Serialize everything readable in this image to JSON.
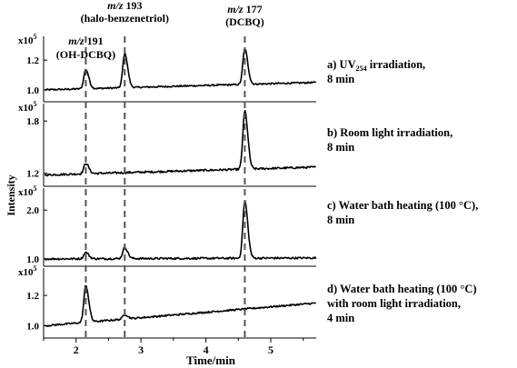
{
  "chart_data": {
    "type": "line",
    "xlabel": "Time/min",
    "ylabel": "Intensity",
    "xlim": [
      1.5,
      5.7
    ],
    "x_ticks": [
      "2",
      "3",
      "4",
      "5"
    ],
    "x_tick_values": [
      2,
      3,
      4,
      5
    ],
    "markers": [
      {
        "x": 2.15,
        "label_prefix": "m/z",
        "label_value": "191",
        "label_compound": "(OH-DCBQ)"
      },
      {
        "x": 2.75,
        "label_prefix": "m/z",
        "label_value": "193",
        "label_compound": "(halo-benzenetriol)"
      },
      {
        "x": 4.6,
        "label_prefix": "m/z",
        "label_value": "177",
        "label_compound": "(DCBQ)"
      }
    ],
    "panels": [
      {
        "scale_label": "x10",
        "scale_exp": "5",
        "ylim": [
          0.92,
          1.36
        ],
        "yticks": [
          1.0,
          1.2
        ],
        "ytick_labels": [
          "1.0",
          "1.2"
        ],
        "annotation_lines": [
          "a) UV254 irradiation,",
          "8 min"
        ],
        "baseline_start": 1.0,
        "baseline_end": 1.05,
        "peaks": [
          {
            "x": 2.15,
            "height": 1.13
          },
          {
            "x": 2.75,
            "height": 1.23
          },
          {
            "x": 4.6,
            "height": 1.24
          }
        ]
      },
      {
        "scale_label": "x10",
        "scale_exp": "5",
        "ylim": [
          1.05,
          2.0
        ],
        "yticks": [
          1.2,
          1.8
        ],
        "ytick_labels": [
          "1.2",
          "1.8"
        ],
        "annotation_lines": [
          "b) Room light irradiation,",
          "8 min"
        ],
        "baseline_start": 1.18,
        "baseline_end": 1.27,
        "peaks": [
          {
            "x": 2.15,
            "height": 1.3
          },
          {
            "x": 4.6,
            "height": 1.85
          }
        ]
      },
      {
        "scale_label": "x10",
        "scale_exp": "5",
        "ylim": [
          0.85,
          2.45
        ],
        "yticks": [
          1.0,
          2.0
        ],
        "ytick_labels": [
          "1.0",
          "2.0"
        ],
        "annotation_lines": [
          "c) Water bath heating (100 °C),",
          "8 min"
        ],
        "baseline_start": 1.0,
        "baseline_end": 1.02,
        "peaks": [
          {
            "x": 2.15,
            "height": 1.13
          },
          {
            "x": 2.75,
            "height": 1.23
          },
          {
            "x": 4.6,
            "height": 2.17
          }
        ]
      },
      {
        "scale_label": "x10",
        "scale_exp": "5",
        "ylim": [
          0.92,
          1.38
        ],
        "yticks": [
          1.0,
          1.2
        ],
        "ytick_labels": [
          "1.0",
          "1.2"
        ],
        "annotation_lines": [
          "d) Water bath heating (100 °C)",
          "with room light irradiation,",
          "4 min"
        ],
        "baseline_start": 1.0,
        "baseline_end": 1.15,
        "peaks": [
          {
            "x": 2.15,
            "height": 1.24
          },
          {
            "x": 2.75,
            "height": 1.03
          }
        ]
      }
    ]
  }
}
